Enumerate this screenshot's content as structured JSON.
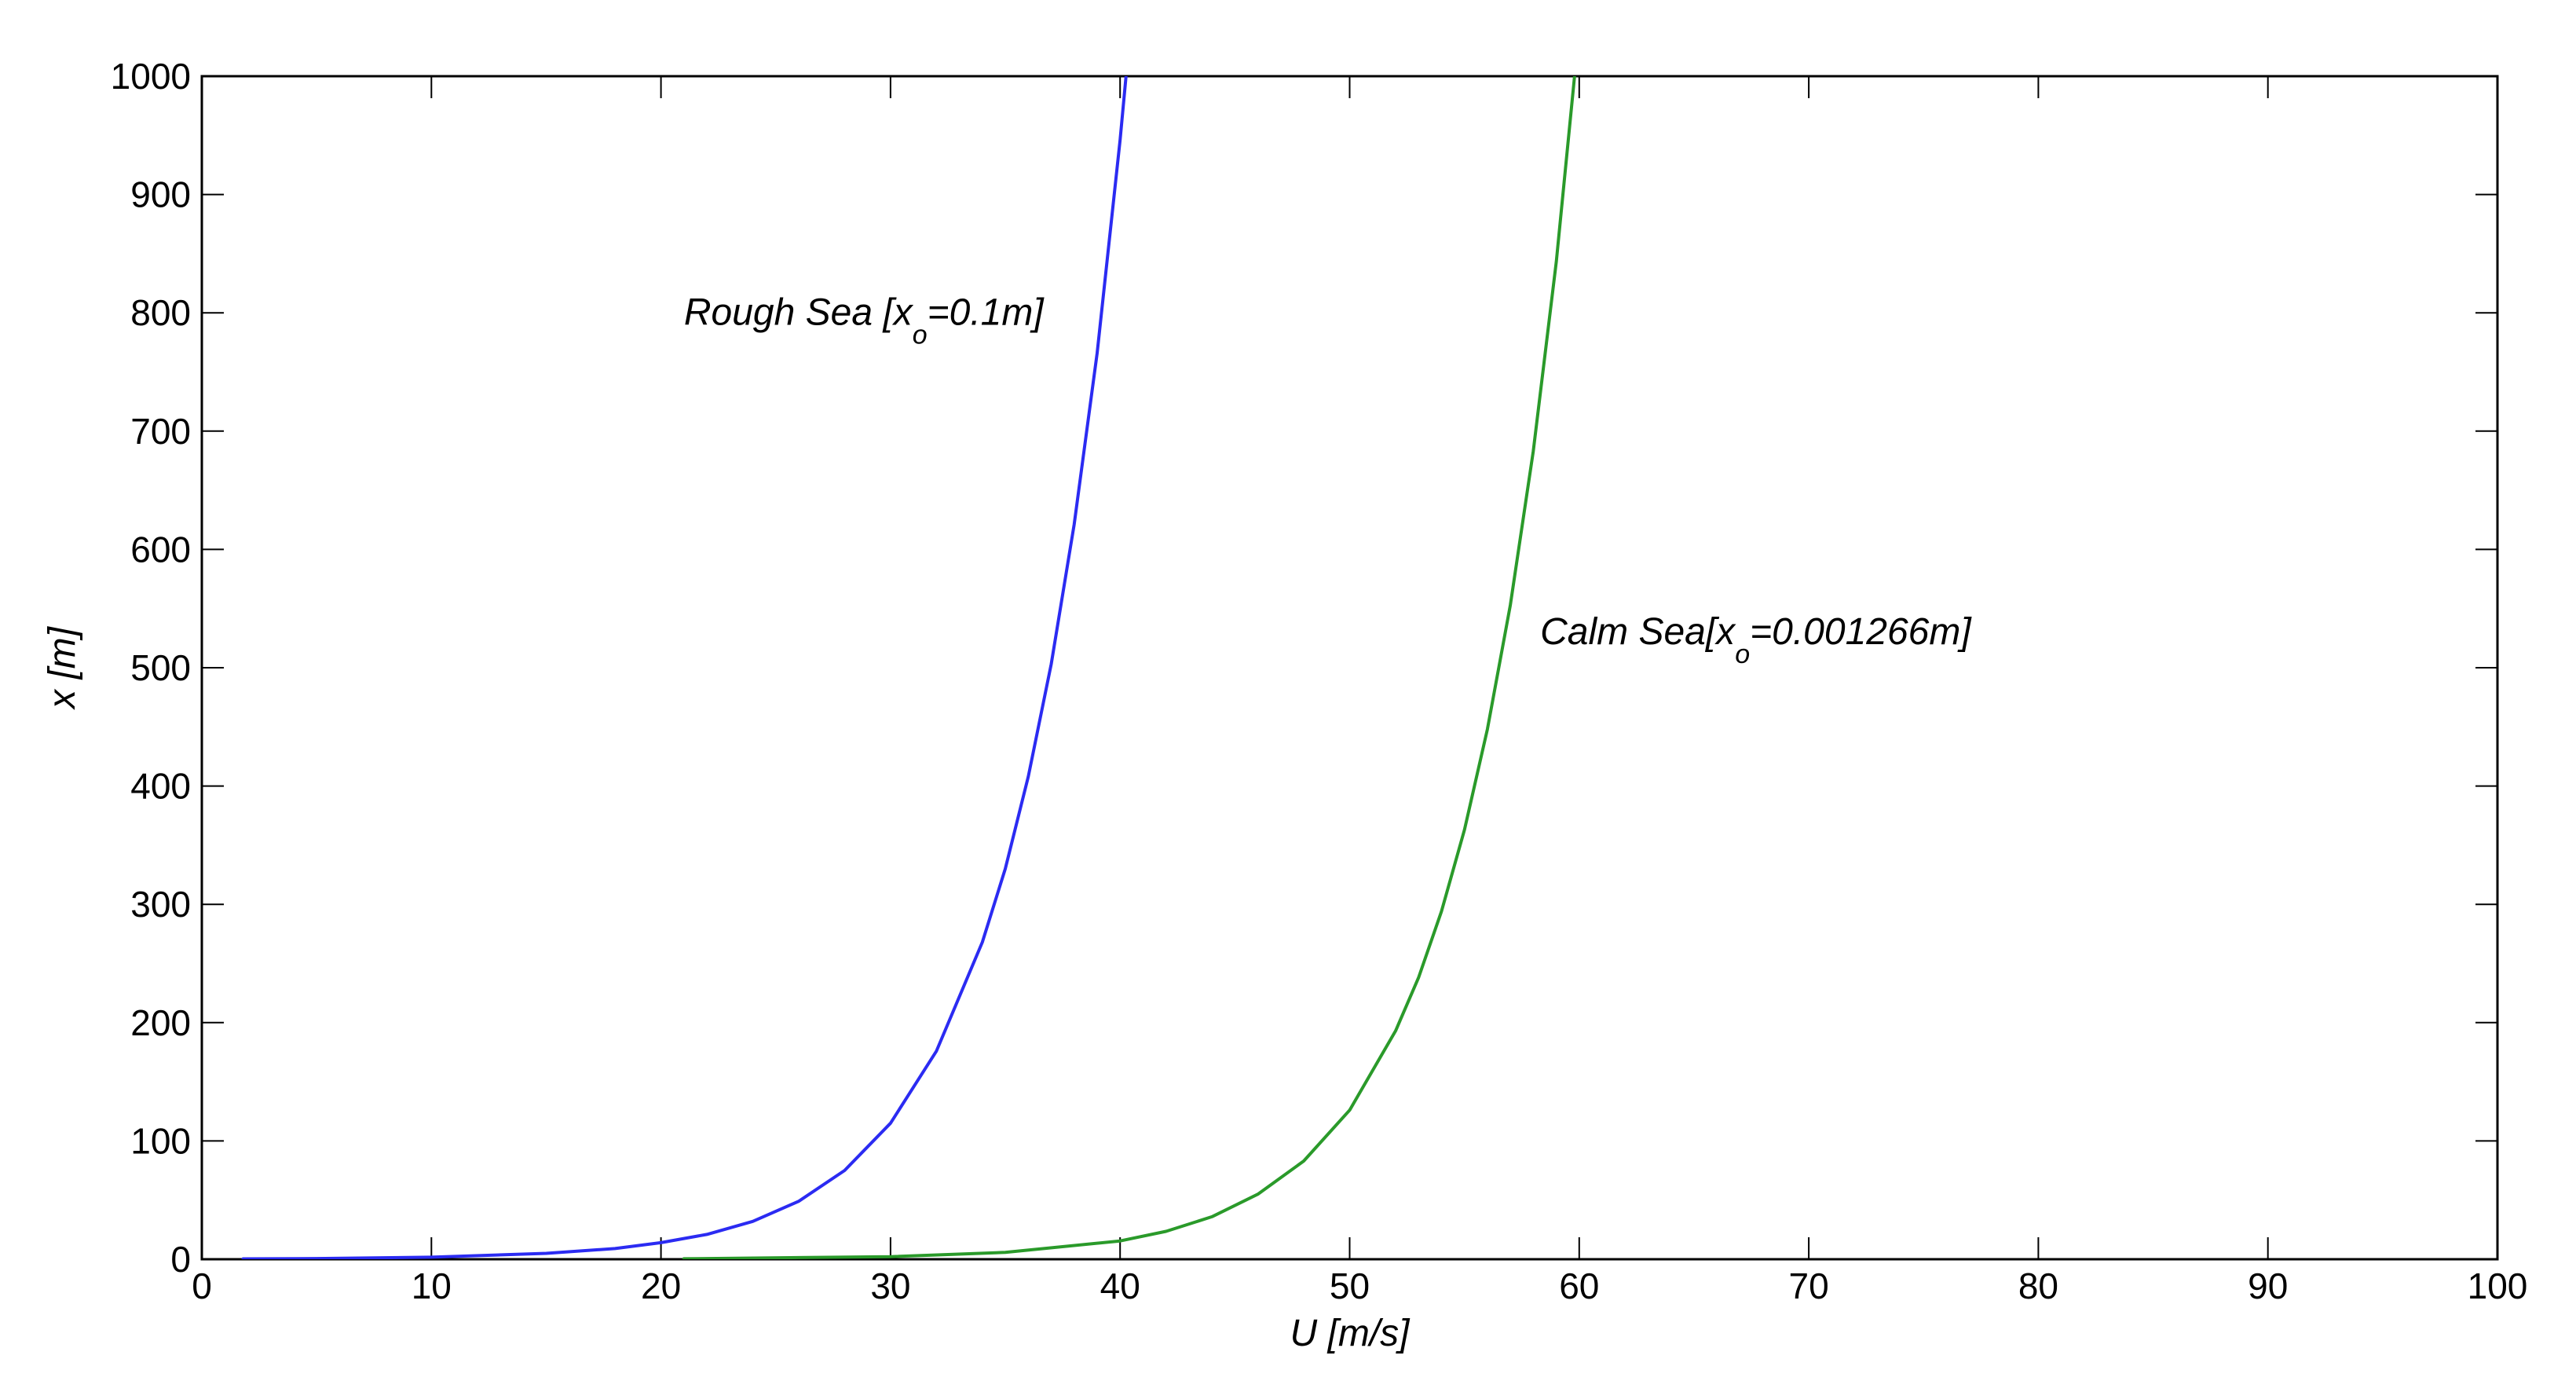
{
  "chart_data": {
    "type": "line",
    "title": "",
    "xlabel": "U [m/s]",
    "ylabel": "x [m]",
    "xlim": [
      0,
      100
    ],
    "ylim": [
      0,
      1000
    ],
    "x_ticks": [
      0,
      10,
      20,
      30,
      40,
      50,
      60,
      70,
      80,
      90,
      100
    ],
    "y_ticks": [
      0,
      100,
      200,
      300,
      400,
      500,
      600,
      700,
      800,
      900,
      1000
    ],
    "grid": false,
    "legend": "none",
    "series": [
      {
        "color": "#2b2bf2",
        "x": [
          1.8,
          5,
          10,
          15,
          18,
          20,
          22,
          24,
          26,
          28,
          30,
          32,
          34,
          35,
          36,
          37,
          38,
          39,
          40,
          40.5
        ],
        "y": [
          0.3,
          0.6,
          1.7,
          5,
          9,
          14,
          21,
          32,
          49,
          75,
          115,
          176,
          268,
          330,
          408,
          503,
          621,
          766,
          946,
          1050
        ]
      },
      {
        "color": "#2a9a2a",
        "x": [
          21,
          30,
          35,
          40,
          42,
          44,
          46,
          48,
          50,
          52,
          53,
          54,
          55,
          56,
          57,
          58,
          59,
          60
        ],
        "y": [
          0.4,
          2.2,
          5.8,
          15.5,
          23.6,
          35.9,
          55,
          83,
          126,
          193,
          238,
          294,
          363,
          448,
          553,
          683,
          843,
          1040
        ]
      }
    ],
    "annotations": [
      {
        "text_main": "Rough Sea [x",
        "text_sub": "o",
        "text_tail": "=0.1m]",
        "x": 21,
        "y": 790
      },
      {
        "text_main": "Calm Sea[x",
        "text_sub": "o",
        "text_tail": "=0.001266m]",
        "x": 58.3,
        "y": 520
      }
    ]
  }
}
